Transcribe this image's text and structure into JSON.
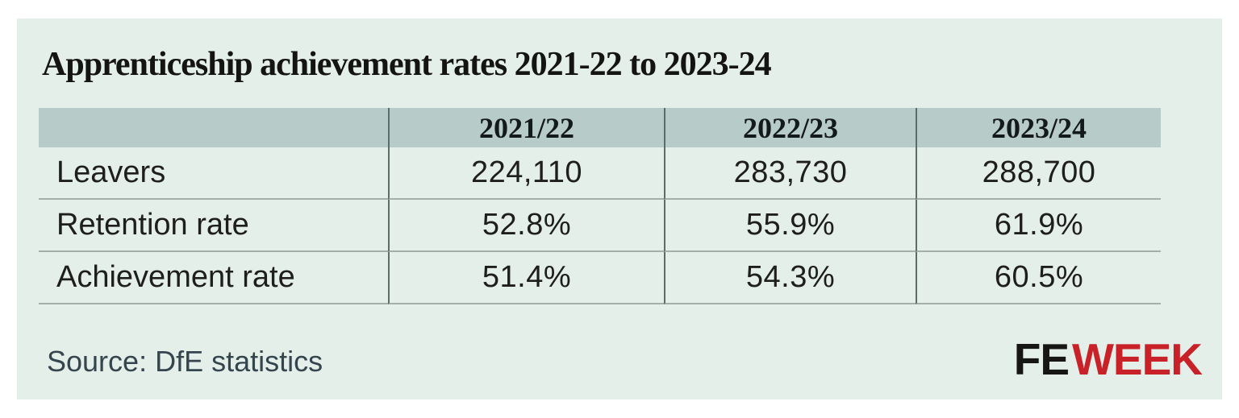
{
  "title": "Apprenticeship achievement rates 2021-22 to 2023-24",
  "table": {
    "header": [
      "",
      "2021/22",
      "2022/23",
      "2023/24"
    ],
    "rows": [
      {
        "label": "Leavers",
        "values": [
          "224,110",
          "283,730",
          "288,700"
        ]
      },
      {
        "label": "Retention rate",
        "values": [
          "52.8%",
          "55.9%",
          "61.9%"
        ]
      },
      {
        "label": "Achievement rate",
        "values": [
          "51.4%",
          "54.3%",
          "60.5%"
        ]
      }
    ]
  },
  "footer": {
    "source": "Source: DfE statistics",
    "logo": {
      "fe": "FE",
      "week": "WEEK"
    }
  },
  "colors": {
    "card_bg": "#e4efe9",
    "header_bg": "#b7ccc8",
    "title_text": "#141413",
    "cell_text": "#1e1e1c",
    "source_text": "#34454e",
    "logo_fe": "#161615",
    "logo_week": "#c92128",
    "vertical_line": "#5c6c69",
    "horizontal_line": "#a3afab"
  },
  "chart_data": {
    "type": "table",
    "title": "Apprenticeship achievement rates 2021-22 to 2023-24",
    "categories": [
      "2021/22",
      "2022/23",
      "2023/24"
    ],
    "series": [
      {
        "name": "Leavers",
        "values": [
          224110,
          283730,
          288700
        ]
      },
      {
        "name": "Retention rate",
        "values": [
          52.8,
          55.9,
          61.9
        ]
      },
      {
        "name": "Achievement rate",
        "values": [
          51.4,
          54.3,
          60.5
        ]
      }
    ],
    "source": "DfE statistics",
    "legend_position": "none",
    "grid": "table-lines"
  }
}
